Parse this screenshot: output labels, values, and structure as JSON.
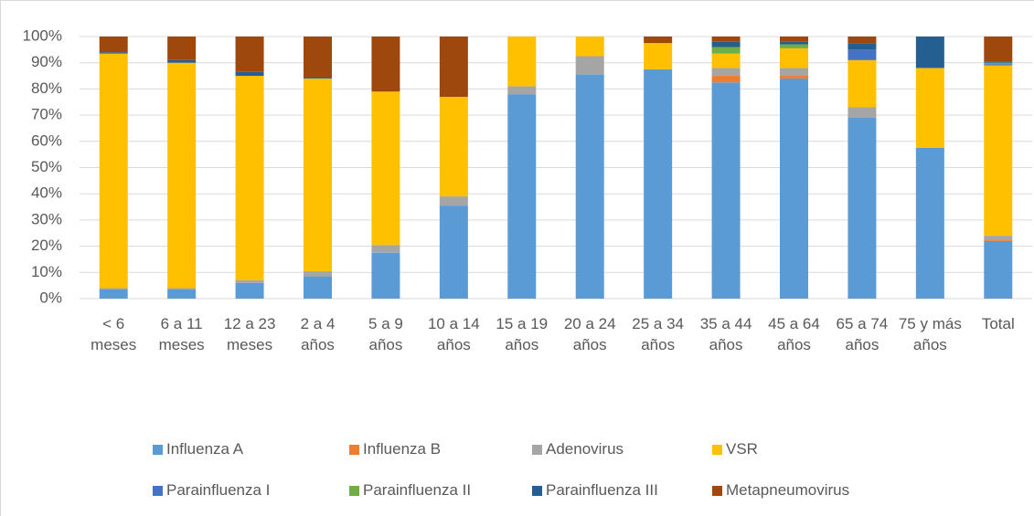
{
  "chart_data": {
    "type": "stacked_bar",
    "categories": [
      "< 6 meses",
      "6 a  11 meses",
      "12 a 23 meses",
      "2 a 4 años",
      "5 a 9 años",
      "10 a 14 años",
      "15 a 19 años",
      "20 a 24 años",
      "25 a 34 años",
      "35 a 44 años",
      "45 a 64 años",
      "65 a 74 años",
      "75 y más años",
      "Total"
    ],
    "series": [
      {
        "name": "Influenza A",
        "color": "#5b9bd5",
        "values": [
          3.5,
          3.5,
          6,
          8.5,
          17.5,
          35.5,
          78,
          85.5,
          87.5,
          82.5,
          84,
          69,
          57.5,
          22
        ]
      },
      {
        "name": "Influenza B",
        "color": "#ed7d31",
        "values": [
          0,
          0,
          0,
          0,
          0,
          0,
          0,
          0,
          0,
          2.5,
          1,
          0,
          0,
          0.5
        ]
      },
      {
        "name": "Adenovirus",
        "color": "#a5a5a5",
        "values": [
          0.5,
          0.5,
          1,
          2,
          3,
          3.5,
          3,
          7,
          0,
          3,
          3,
          4,
          0,
          1.5
        ]
      },
      {
        "name": "VSR",
        "color": "#ffc000",
        "values": [
          89.5,
          86,
          78,
          73.5,
          58.5,
          38,
          19,
          7.5,
          10,
          5.5,
          7.5,
          18,
          30.5,
          65
        ]
      },
      {
        "name": "Parainfluenza I",
        "color": "#4472c4",
        "values": [
          0,
          0,
          0,
          0,
          0,
          0,
          0,
          0,
          0,
          0,
          0,
          4,
          0,
          0.5
        ]
      },
      {
        "name": "Parainfluenza II",
        "color": "#70ad47",
        "values": [
          0,
          0,
          0,
          0,
          0,
          0,
          0,
          0,
          0,
          2.5,
          1.5,
          0,
          0,
          0.5
        ]
      },
      {
        "name": "Parainfluenza III",
        "color": "#255e91",
        "values": [
          0.5,
          1,
          1.5,
          0.5,
          0,
          0,
          0,
          0,
          0,
          2,
          1,
          2.5,
          12,
          0.5
        ]
      },
      {
        "name": "Metapneumovirus",
        "color": "#9e480e",
        "values": [
          6,
          9,
          13.5,
          15.5,
          21,
          23,
          0,
          0,
          2.5,
          2,
          2,
          2.5,
          0,
          9.5
        ]
      }
    ],
    "ylim": [
      0,
      100
    ],
    "yticks": [
      {
        "value": 0,
        "label": "0%"
      },
      {
        "value": 10,
        "label": "10%"
      },
      {
        "value": 20,
        "label": "20%"
      },
      {
        "value": 30,
        "label": "30%"
      },
      {
        "value": 40,
        "label": "40%"
      },
      {
        "value": 50,
        "label": "50%"
      },
      {
        "value": 60,
        "label": "60%"
      },
      {
        "value": 70,
        "label": "70%"
      },
      {
        "value": 80,
        "label": "80%"
      },
      {
        "value": 90,
        "label": "90%"
      },
      {
        "value": 100,
        "label": "100%"
      }
    ],
    "grid": true,
    "legend": "bottom"
  }
}
